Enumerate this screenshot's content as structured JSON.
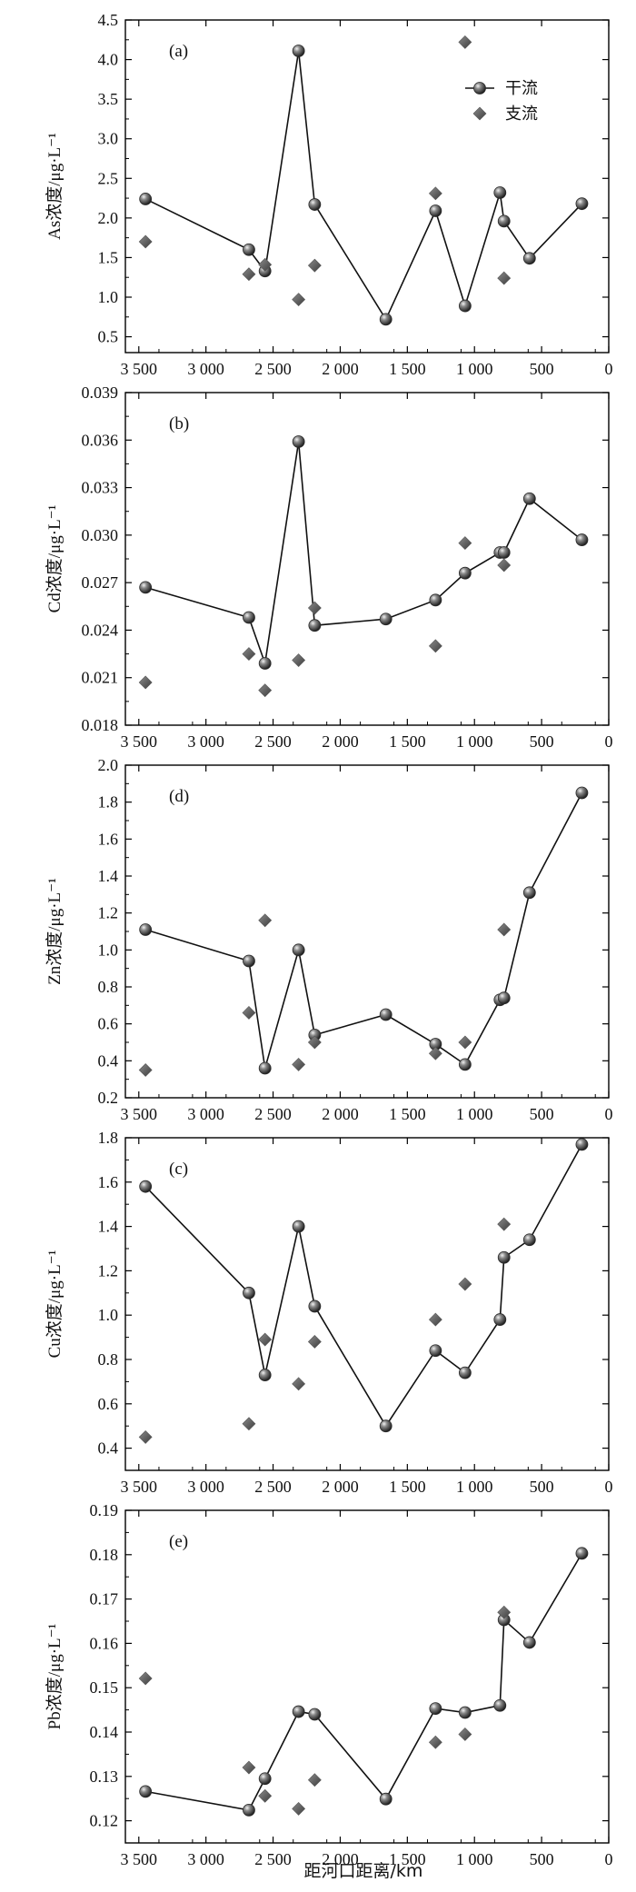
{
  "figure": {
    "xlabel": "距河口距离/km"
  },
  "legend": {
    "main_label": "干流",
    "trib_label": "支流"
  },
  "colors": {
    "main_marker": "#2b2b2b",
    "trib_marker": "#555555",
    "line": "#111111"
  },
  "chart_data": [
    {
      "type": "scatter",
      "panel_label": "(a)",
      "ylabel": "As浓度/μg·L⁻¹",
      "xlim": [
        3600,
        0
      ],
      "ylim": [
        0.3,
        4.5
      ],
      "xticks": [
        3500,
        3000,
        2500,
        2000,
        1500,
        1000,
        500,
        0
      ],
      "xtick_labels": [
        "3 500",
        "3 000",
        "2 500",
        "2 000",
        "1 500",
        "1 000",
        "500",
        "0"
      ],
      "yticks": [
        0.5,
        1.0,
        1.5,
        2.0,
        2.5,
        3.0,
        3.5,
        4.0,
        4.5
      ],
      "ytick_labels": [
        "0.5",
        "1.0",
        "1.5",
        "2.0",
        "2.5",
        "3.0",
        "3.5",
        "4.0",
        "4.5"
      ],
      "legend_visible": true,
      "series": [
        {
          "name": "干流",
          "kind": "line-marker",
          "x": [
            3450,
            2680,
            2560,
            2310,
            2190,
            1660,
            1290,
            1070,
            810,
            780,
            590,
            200
          ],
          "y": [
            2.24,
            1.6,
            1.33,
            4.11,
            2.17,
            0.72,
            2.09,
            0.89,
            2.32,
            1.96,
            1.49,
            2.18
          ]
        },
        {
          "name": "支流",
          "kind": "marker",
          "x": [
            3450,
            2680,
            2560,
            2310,
            2190,
            1290,
            1070,
            780
          ],
          "y": [
            1.7,
            1.29,
            1.41,
            0.97,
            1.4,
            2.31,
            4.22,
            1.24
          ]
        }
      ]
    },
    {
      "type": "scatter",
      "panel_label": "(b)",
      "ylabel": "Cd浓度/μg·L⁻¹",
      "xlim": [
        3600,
        0
      ],
      "ylim": [
        0.018,
        0.039
      ],
      "xticks": [
        3500,
        3000,
        2500,
        2000,
        1500,
        1000,
        500,
        0
      ],
      "xtick_labels": [
        "3 500",
        "3 000",
        "2 500",
        "2 000",
        "1 500",
        "1 000",
        "500",
        "0"
      ],
      "yticks": [
        0.018,
        0.021,
        0.024,
        0.027,
        0.03,
        0.033,
        0.036,
        0.039
      ],
      "ytick_labels": [
        "0.018",
        "0.021",
        "0.024",
        "0.027",
        "0.030",
        "0.033",
        "0.036",
        "0.039"
      ],
      "legend_visible": false,
      "series": [
        {
          "name": "干流",
          "kind": "line-marker",
          "x": [
            3450,
            2680,
            2560,
            2310,
            2190,
            1660,
            1290,
            1070,
            810,
            780,
            590,
            200
          ],
          "y": [
            0.0267,
            0.0248,
            0.0219,
            0.0359,
            0.0243,
            0.0247,
            0.0259,
            0.0276,
            0.0289,
            0.0289,
            0.0323,
            0.0297
          ]
        },
        {
          "name": "支流",
          "kind": "marker",
          "x": [
            3450,
            2680,
            2560,
            2310,
            2190,
            1290,
            1070,
            780
          ],
          "y": [
            0.0207,
            0.0225,
            0.0202,
            0.0221,
            0.0254,
            0.023,
            0.0295,
            0.0281
          ]
        }
      ]
    },
    {
      "type": "scatter",
      "panel_label": "(d)",
      "ylabel": "Zn浓度/μg·L⁻¹",
      "xlim": [
        3600,
        0
      ],
      "ylim": [
        0.2,
        2.0
      ],
      "xticks": [
        3500,
        3000,
        2500,
        2000,
        1500,
        1000,
        500,
        0
      ],
      "xtick_labels": [
        "3 500",
        "3 000",
        "2 500",
        "2 000",
        "1 500",
        "1 000",
        "500",
        "0"
      ],
      "yticks": [
        0.2,
        0.4,
        0.6,
        0.8,
        1.0,
        1.2,
        1.4,
        1.6,
        1.8,
        2.0
      ],
      "ytick_labels": [
        "0.2",
        "0.4",
        "0.6",
        "0.8",
        "1.0",
        "1.2",
        "1.4",
        "1.6",
        "1.8",
        "2.0"
      ],
      "legend_visible": false,
      "series": [
        {
          "name": "干流",
          "kind": "line-marker",
          "x": [
            3450,
            2680,
            2560,
            2310,
            2190,
            1660,
            1290,
            1070,
            810,
            780,
            590,
            200
          ],
          "y": [
            1.11,
            0.94,
            0.36,
            1.0,
            0.54,
            0.65,
            0.49,
            0.38,
            0.73,
            0.74,
            1.31,
            1.85
          ]
        },
        {
          "name": "支流",
          "kind": "marker",
          "x": [
            3450,
            2680,
            2560,
            2310,
            2190,
            1290,
            1070,
            780
          ],
          "y": [
            0.35,
            0.66,
            1.16,
            0.38,
            0.5,
            0.44,
            0.5,
            1.11
          ]
        }
      ]
    },
    {
      "type": "scatter",
      "panel_label": "(c)",
      "ylabel": "Cu浓度/μg·L⁻¹",
      "xlim": [
        3600,
        0
      ],
      "ylim": [
        0.3,
        1.8
      ],
      "xticks": [
        3500,
        3000,
        2500,
        2000,
        1500,
        1000,
        500,
        0
      ],
      "xtick_labels": [
        "3 500",
        "3 000",
        "2 500",
        "2 000",
        "1 500",
        "1 000",
        "500",
        "0"
      ],
      "yticks": [
        0.4,
        0.6,
        0.8,
        1.0,
        1.2,
        1.4,
        1.6,
        1.8
      ],
      "ytick_labels": [
        "0.4",
        "0.6",
        "0.8",
        "1.0",
        "1.2",
        "1.4",
        "1.6",
        "1.8"
      ],
      "legend_visible": false,
      "series": [
        {
          "name": "干流",
          "kind": "line-marker",
          "x": [
            3450,
            2680,
            2560,
            2310,
            2190,
            1660,
            1290,
            1070,
            810,
            780,
            590,
            200
          ],
          "y": [
            1.58,
            1.1,
            0.73,
            1.4,
            1.04,
            0.5,
            0.84,
            0.74,
            0.98,
            1.26,
            1.34,
            1.77
          ]
        },
        {
          "name": "支流",
          "kind": "marker",
          "x": [
            3450,
            2680,
            2560,
            2310,
            2190,
            1290,
            1070,
            780
          ],
          "y": [
            0.45,
            0.51,
            0.89,
            0.69,
            0.88,
            0.98,
            1.14,
            1.41
          ]
        }
      ]
    },
    {
      "type": "scatter",
      "panel_label": "(e)",
      "ylabel": "Pb浓度/μg·L⁻¹",
      "xlim": [
        3600,
        0
      ],
      "ylim": [
        0.115,
        0.19
      ],
      "xticks": [
        3500,
        3000,
        2500,
        2000,
        1500,
        1000,
        500,
        0
      ],
      "xtick_labels": [
        "3 500",
        "3 000",
        "2 500",
        "2 000",
        "1 500",
        "1 000",
        "500",
        "0"
      ],
      "yticks": [
        0.12,
        0.13,
        0.14,
        0.15,
        0.16,
        0.17,
        0.18,
        0.19
      ],
      "ytick_labels": [
        "0.12",
        "0.13",
        "0.14",
        "0.15",
        "0.16",
        "0.17",
        "0.18",
        "0.19"
      ],
      "legend_visible": false,
      "series": [
        {
          "name": "干流",
          "kind": "line-marker",
          "x": [
            3450,
            2680,
            2560,
            2310,
            2190,
            1660,
            1290,
            1070,
            810,
            780,
            590,
            200
          ],
          "y": [
            0.1266,
            0.1224,
            0.1295,
            0.1446,
            0.144,
            0.1249,
            0.1453,
            0.1444,
            0.146,
            0.1653,
            0.1602,
            0.1803
          ]
        },
        {
          "name": "支流",
          "kind": "marker",
          "x": [
            3450,
            2680,
            2560,
            2310,
            2190,
            1290,
            1070,
            780
          ],
          "y": [
            0.1521,
            0.132,
            0.1256,
            0.1227,
            0.1292,
            0.1377,
            0.1395,
            0.167
          ]
        }
      ]
    }
  ]
}
